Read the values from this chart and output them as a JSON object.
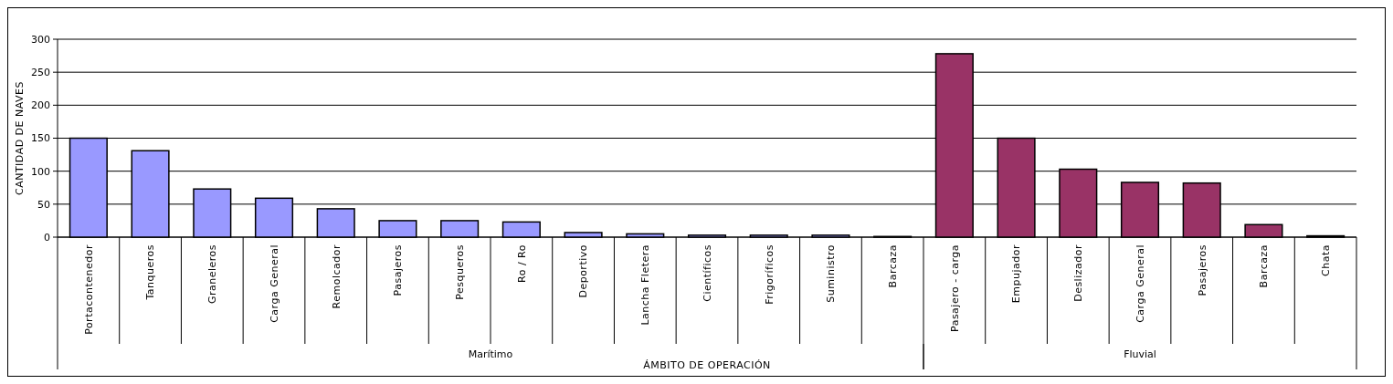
{
  "chart_data": {
    "type": "bar",
    "xlabel": "ÁMBITO DE OPERACIÓN",
    "ylabel": "CANTIDAD DE NAVES",
    "categories": [
      "Portacontenedor",
      "Tanqueros",
      "Graneleros",
      "Carga General",
      "Remolcador",
      "Pasajeros",
      "Pesqueros",
      "Ro / Ro",
      "Deportivo",
      "Lancha Fletera",
      "Científicos",
      "Frigoríficos",
      "Suministro",
      "Barcaza",
      "Pasajero - carga",
      "Empujador",
      "Deslizador",
      "Carga General",
      "Pasajeros",
      "Barcaza",
      "Chata"
    ],
    "values": [
      150,
      131,
      73,
      59,
      43,
      25,
      25,
      23,
      7,
      5,
      3,
      3,
      3,
      1,
      278,
      150,
      103,
      83,
      82,
      19,
      2
    ],
    "colors": [
      "#9999ff",
      "#9999ff",
      "#9999ff",
      "#9999ff",
      "#9999ff",
      "#9999ff",
      "#9999ff",
      "#9999ff",
      "#9999ff",
      "#9999ff",
      "#9999ff",
      "#9999ff",
      "#9999ff",
      "#9999ff",
      "#993366",
      "#993366",
      "#993366",
      "#993366",
      "#993366",
      "#993366",
      "#993366"
    ],
    "annotations": [
      "Marítimo",
      "Fluvial"
    ],
    "ylim": [
      0,
      300
    ],
    "yticks": [
      0,
      50,
      100,
      150,
      200,
      250,
      300
    ],
    "grid": "y"
  }
}
